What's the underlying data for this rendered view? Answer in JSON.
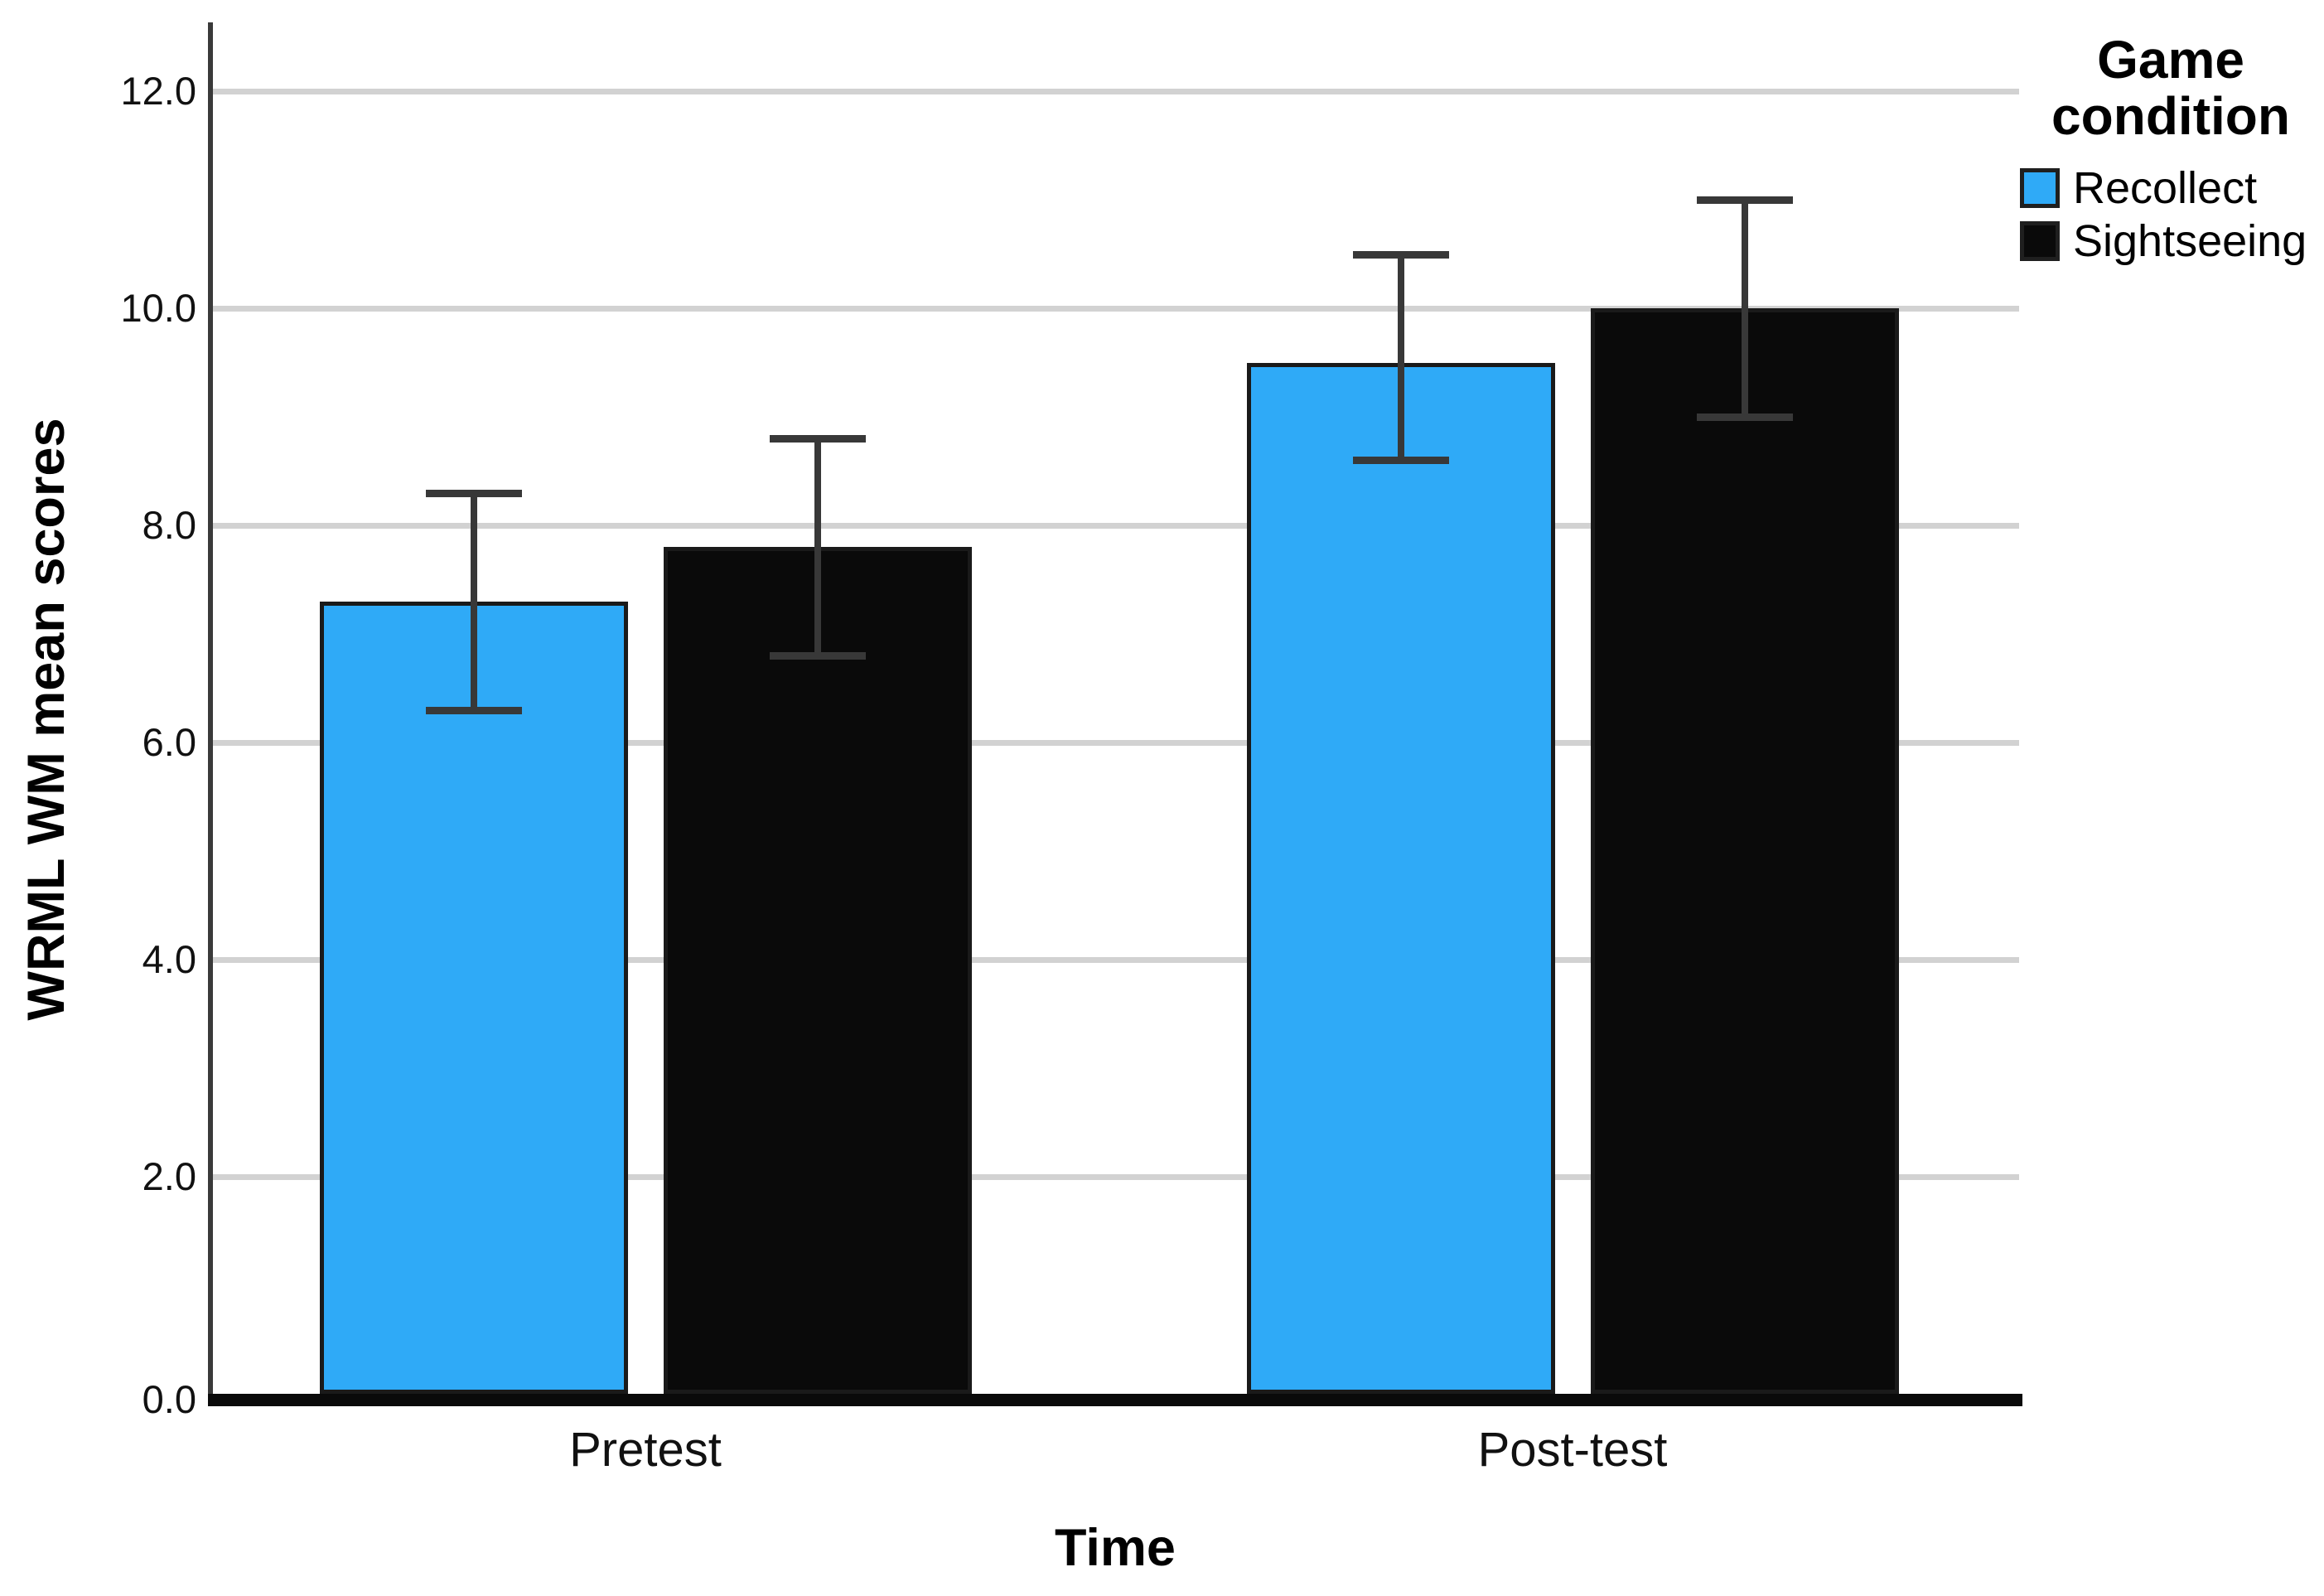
{
  "chart_data": {
    "type": "bar",
    "title": "",
    "categories": [
      "Pretest",
      "Post-test"
    ],
    "series": [
      {
        "name": "Recollect",
        "color": "#2FAAF7",
        "values": [
          7.3,
          9.5
        ],
        "error_low": [
          6.3,
          8.6
        ],
        "error_high": [
          8.3,
          10.5
        ]
      },
      {
        "name": "Sightseeing",
        "color": "#0A0A0A",
        "values": [
          7.8,
          10.0
        ],
        "error_low": [
          6.8,
          9.0
        ],
        "error_high": [
          8.8,
          11.0
        ]
      }
    ],
    "xlabel": "Time",
    "ylabel": "WRML WM mean scores",
    "ylim": [
      0.0,
      12.6
    ],
    "yticks": [
      0,
      2,
      4,
      6,
      8,
      10,
      12
    ],
    "ytick_labels": [
      "0.0",
      "2.0",
      "4.0",
      "6.0",
      "8.0",
      "10.0",
      "12.0"
    ],
    "grid": true,
    "legend_title": "Game condition",
    "legend_position": "top-right"
  }
}
